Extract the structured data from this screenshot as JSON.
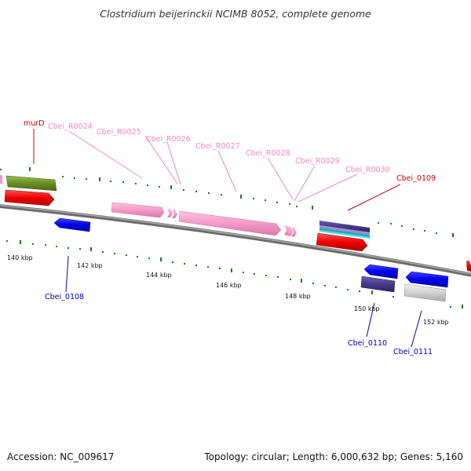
{
  "title": "Clostridium beijerinckii NCIMB 8052, complete genome",
  "footer": {
    "accession": "Accession: NC_009617",
    "topology": "Topology: circular; Length: 6,000,632 bp; Genes: 5,160"
  },
  "colors": {
    "backbone": "#808080",
    "forward_label": "#cc0000",
    "rna_label": "#ee88bb",
    "reverse_label": "#0000aa",
    "dot_track": "#1a7a1a"
  },
  "features": {
    "murD": "murD",
    "r24": "Cbei_R0024",
    "r25": "Cbei_R0025",
    "r26": "Cbei_R0026",
    "r27": "Cbei_R0027",
    "r28": "Cbei_R0028",
    "r29": "Cbei_R0029",
    "r30": "Cbei_R0030",
    "g0109": "Cbei_0109",
    "g0108": "Cbei_0108",
    "g0110": "Cbei_0110",
    "g0111": "Cbei_0111"
  },
  "ticks": [
    "140 kbp",
    "142 kbp",
    "144 kbp",
    "146 kbp",
    "148 kbp",
    "150 kbp",
    "152 kbp"
  ]
}
